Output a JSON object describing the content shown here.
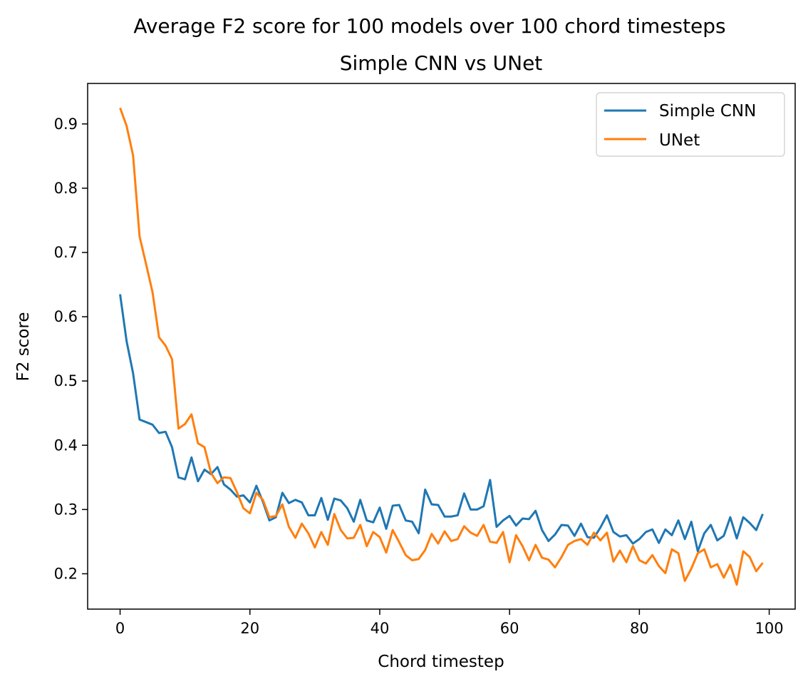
{
  "chart_data": {
    "type": "line",
    "title": "Average F2 score for 100 models over 100 chord timesteps",
    "subtitle": "Simple CNN vs UNet",
    "xlabel": "Chord timestep",
    "ylabel": "F2 score",
    "xlim": [
      -5,
      104
    ],
    "ylim": [
      0.145,
      0.963
    ],
    "xticks": [
      0,
      20,
      40,
      60,
      80,
      100
    ],
    "xtick_labels": [
      "0",
      "20",
      "40",
      "60",
      "80",
      "100"
    ],
    "yticks": [
      0.2,
      0.3,
      0.4,
      0.5,
      0.6,
      0.7,
      0.8,
      0.9
    ],
    "ytick_labels": [
      "0.2",
      "0.3",
      "0.4",
      "0.5",
      "0.6",
      "0.7",
      "0.8",
      "0.9"
    ],
    "grid": false,
    "legend_position": "top-right",
    "series": [
      {
        "name": "Simple CNN",
        "color": "#1f77b4",
        "x": [
          0,
          1,
          2,
          3,
          4,
          5,
          6,
          7,
          8,
          9,
          10,
          11,
          12,
          13,
          14,
          15,
          16,
          17,
          18,
          19,
          20,
          21,
          22,
          23,
          24,
          25,
          26,
          27,
          28,
          29,
          30,
          31,
          32,
          33,
          34,
          35,
          36,
          37,
          38,
          39,
          40,
          41,
          42,
          43,
          44,
          45,
          46,
          47,
          48,
          49,
          50,
          51,
          52,
          53,
          54,
          55,
          56,
          57,
          58,
          59,
          60,
          61,
          62,
          63,
          64,
          65,
          66,
          67,
          68,
          69,
          70,
          71,
          72,
          73,
          74,
          75,
          76,
          77,
          78,
          79,
          80,
          81,
          82,
          83,
          84,
          85,
          86,
          87,
          88,
          89,
          90,
          91,
          92,
          93,
          94,
          95,
          96,
          97,
          98,
          99
        ],
        "values": [
          0.635,
          0.562,
          0.512,
          0.44,
          0.436,
          0.432,
          0.419,
          0.421,
          0.397,
          0.35,
          0.347,
          0.381,
          0.344,
          0.362,
          0.355,
          0.366,
          0.339,
          0.331,
          0.32,
          0.322,
          0.311,
          0.337,
          0.312,
          0.283,
          0.288,
          0.326,
          0.31,
          0.315,
          0.311,
          0.291,
          0.291,
          0.318,
          0.284,
          0.317,
          0.314,
          0.302,
          0.281,
          0.315,
          0.283,
          0.28,
          0.303,
          0.27,
          0.306,
          0.307,
          0.283,
          0.281,
          0.263,
          0.331,
          0.308,
          0.307,
          0.289,
          0.289,
          0.291,
          0.325,
          0.3,
          0.3,
          0.305,
          0.346,
          0.273,
          0.283,
          0.29,
          0.275,
          0.286,
          0.285,
          0.298,
          0.268,
          0.251,
          0.261,
          0.276,
          0.275,
          0.259,
          0.278,
          0.257,
          0.256,
          0.272,
          0.291,
          0.265,
          0.258,
          0.26,
          0.247,
          0.254,
          0.265,
          0.269,
          0.248,
          0.269,
          0.26,
          0.283,
          0.254,
          0.281,
          0.235,
          0.263,
          0.276,
          0.252,
          0.259,
          0.288,
          0.255,
          0.288,
          0.279,
          0.268,
          0.293
        ]
      },
      {
        "name": "UNet",
        "color": "#ff7f0e",
        "x": [
          0,
          1,
          2,
          3,
          4,
          5,
          6,
          7,
          8,
          9,
          10,
          11,
          12,
          13,
          14,
          15,
          16,
          17,
          18,
          19,
          20,
          21,
          22,
          23,
          24,
          25,
          26,
          27,
          28,
          29,
          30,
          31,
          32,
          33,
          34,
          35,
          36,
          37,
          38,
          39,
          40,
          41,
          42,
          43,
          44,
          45,
          46,
          47,
          48,
          49,
          50,
          51,
          52,
          53,
          54,
          55,
          56,
          57,
          58,
          59,
          60,
          61,
          62,
          63,
          64,
          65,
          66,
          67,
          68,
          69,
          70,
          71,
          72,
          73,
          74,
          75,
          76,
          77,
          78,
          79,
          80,
          81,
          82,
          83,
          84,
          85,
          86,
          87,
          88,
          89,
          90,
          91,
          92,
          93,
          94,
          95,
          96,
          97,
          98,
          99
        ],
        "values": [
          0.925,
          0.897,
          0.851,
          0.725,
          0.682,
          0.638,
          0.568,
          0.555,
          0.534,
          0.426,
          0.433,
          0.448,
          0.403,
          0.397,
          0.357,
          0.341,
          0.35,
          0.349,
          0.327,
          0.302,
          0.294,
          0.326,
          0.315,
          0.288,
          0.29,
          0.308,
          0.273,
          0.256,
          0.278,
          0.263,
          0.241,
          0.265,
          0.245,
          0.293,
          0.268,
          0.255,
          0.256,
          0.276,
          0.243,
          0.265,
          0.257,
          0.233,
          0.268,
          0.249,
          0.229,
          0.221,
          0.223,
          0.237,
          0.262,
          0.247,
          0.266,
          0.251,
          0.254,
          0.274,
          0.264,
          0.259,
          0.276,
          0.25,
          0.248,
          0.265,
          0.218,
          0.26,
          0.243,
          0.221,
          0.245,
          0.225,
          0.222,
          0.21,
          0.226,
          0.245,
          0.251,
          0.254,
          0.245,
          0.264,
          0.252,
          0.264,
          0.219,
          0.236,
          0.218,
          0.243,
          0.221,
          0.216,
          0.229,
          0.212,
          0.201,
          0.238,
          0.232,
          0.189,
          0.208,
          0.232,
          0.238,
          0.21,
          0.215,
          0.194,
          0.214,
          0.183,
          0.235,
          0.226,
          0.204,
          0.217
        ]
      }
    ]
  }
}
